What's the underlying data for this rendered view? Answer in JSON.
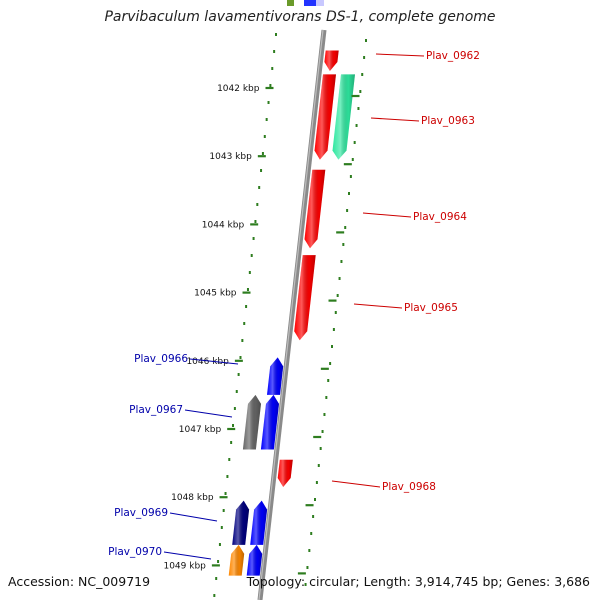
{
  "title": "Parvibaculum lavamentivorans DS-1, complete genome",
  "footer": {
    "accession": "Accession: NC_009719",
    "summary": "Topology: circular; Length: 3,914,745 bp; Genes: 3,686"
  },
  "colors": {
    "forward_label": "#cc0000",
    "reverse_label": "#0000aa",
    "tick": "#2e7d1f",
    "backbone": "#8a8a8a"
  },
  "ticks": [
    {
      "label": "1042 kbp",
      "kbp": 1042
    },
    {
      "label": "1043 kbp",
      "kbp": 1043
    },
    {
      "label": "1044 kbp",
      "kbp": 1044
    },
    {
      "label": "1045 kbp",
      "kbp": 1045
    },
    {
      "label": "1046 kbp",
      "kbp": 1046
    },
    {
      "label": "1047 kbp",
      "kbp": 1047
    },
    {
      "label": "1048 kbp",
      "kbp": 1048
    },
    {
      "label": "1049 kbp",
      "kbp": 1049
    }
  ],
  "genes": [
    {
      "label": "Plav_0962",
      "strand": "+",
      "color": "#ff0000",
      "start_kbp": 1041.45,
      "end_kbp": 1041.75
    },
    {
      "label": "Plav_0963",
      "strand": "+",
      "color": "#ff0000",
      "start_kbp": 1041.8,
      "end_kbp": 1043.05
    },
    {
      "label": "",
      "strand": "+",
      "color": "#2ee8a0",
      "start_kbp": 1041.8,
      "end_kbp": 1043.05
    },
    {
      "label": "Plav_0964",
      "strand": "+",
      "color": "#ff0000",
      "start_kbp": 1043.2,
      "end_kbp": 1044.35
    },
    {
      "label": "Plav_0965",
      "strand": "+",
      "color": "#ff0000",
      "start_kbp": 1044.45,
      "end_kbp": 1045.7
    },
    {
      "label": "Plav_0966",
      "strand": "-",
      "color": "#0000ff",
      "start_kbp": 1045.95,
      "end_kbp": 1046.5
    },
    {
      "label": "Plav_0967",
      "strand": "-",
      "color": "#0000ff",
      "start_kbp": 1046.5,
      "end_kbp": 1047.3
    },
    {
      "label": "",
      "strand": "-",
      "color": "#666666",
      "start_kbp": 1046.5,
      "end_kbp": 1047.3
    },
    {
      "label": "Plav_0968",
      "strand": "+",
      "color": "#ff0000",
      "start_kbp": 1047.45,
      "end_kbp": 1047.85
    },
    {
      "label": "Plav_0969",
      "strand": "-",
      "color": "#0000ff",
      "start_kbp": 1048.05,
      "end_kbp": 1048.7
    },
    {
      "label": "",
      "strand": "-",
      "color": "#000080",
      "start_kbp": 1048.05,
      "end_kbp": 1048.7
    },
    {
      "label": "Plav_0970",
      "strand": "-",
      "color": "#0000ff",
      "start_kbp": 1048.7,
      "end_kbp": 1049.15
    },
    {
      "label": "",
      "strand": "-",
      "color": "#ff8800",
      "start_kbp": 1048.7,
      "end_kbp": 1049.15
    }
  ]
}
